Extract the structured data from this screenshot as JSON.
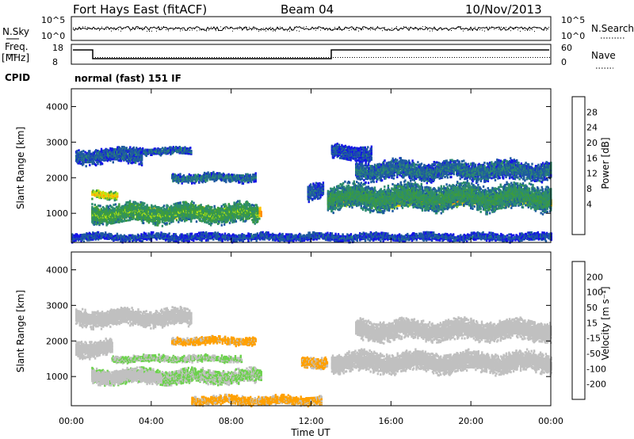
{
  "header": {
    "radar": "Fort Hays East (fitACF)",
    "beam": "Beam 04",
    "date": "10/Nov/2013"
  },
  "panels": {
    "nsky_label": "N.Sky",
    "nsky_ticks": [
      "10^5",
      "10^0"
    ],
    "nsearch_label": "N.Search",
    "nsearch_ticks": [
      "10^5",
      "10^0"
    ],
    "freq_label_1": "Freq.",
    "freq_label_2": "[MHz]",
    "freq_ticks": [
      "18",
      "8"
    ],
    "nave_label": "Nave",
    "nave_ticks": [
      "60",
      "0"
    ],
    "cpid_label": "CPID",
    "cpid_text": "normal (fast) 151 IF"
  },
  "colorbars": {
    "power": {
      "label": "Power [dB]",
      "ticks": [
        "28",
        "24",
        "20",
        "16",
        "12",
        "8",
        "4"
      ],
      "colors": [
        "#e00000",
        "#ff4a00",
        "#ff8c00",
        "#ffc400",
        "#b4e614",
        "#3c9c3c",
        "#2d8c6e",
        "#1e5aa0",
        "#1414e6"
      ]
    },
    "velocity": {
      "label": "Velocity [m s⁻¹]",
      "ticks": [
        "200",
        "100",
        "50",
        "15",
        "-15",
        "-50",
        "-100",
        "-200"
      ],
      "colors": [
        "#1c2fa8",
        "#2060c8",
        "#38a038",
        "#6cd24c",
        "#c0c0c0",
        "#ffa000",
        "#ff7814",
        "#ff3c1e",
        "#e60000"
      ]
    }
  },
  "chart_data": [
    {
      "type": "heatmap",
      "name": "power",
      "ylabel": "Slant Range [km]",
      "yticks": [
        1000,
        2000,
        3000,
        4000
      ],
      "ylim": [
        180,
        4500
      ],
      "xlim": [
        0,
        24
      ],
      "cbar_range": [
        0,
        32
      ],
      "cbar_label": "Power [dB]",
      "blobs": [
        {
          "t0": 1.0,
          "t1": 9.5,
          "r": 1000,
          "w": 170,
          "v": 24
        },
        {
          "t0": 1.0,
          "t1": 9.3,
          "r": 1000,
          "w": 290,
          "v": 13
        },
        {
          "t0": 2.0,
          "t1": 6.0,
          "r": 2750,
          "w": 110,
          "v": 6
        },
        {
          "t0": 0.2,
          "t1": 3.5,
          "r": 2600,
          "w": 220,
          "v": 6
        },
        {
          "t0": 5.0,
          "t1": 9.2,
          "r": 2000,
          "w": 130,
          "v": 7
        },
        {
          "t0": 1.0,
          "t1": 2.3,
          "r": 1500,
          "w": 120,
          "v": 20
        },
        {
          "t0": 13.0,
          "t1": 24.0,
          "r": 1350,
          "w": 170,
          "v": 24
        },
        {
          "t0": 12.8,
          "t1": 24.0,
          "r": 1450,
          "w": 380,
          "v": 11
        },
        {
          "t0": 14.2,
          "t1": 24.0,
          "r": 2200,
          "w": 280,
          "v": 7
        },
        {
          "t0": 13.0,
          "t1": 15.0,
          "r": 2700,
          "w": 220,
          "v": 5
        },
        {
          "t0": 11.8,
          "t1": 12.6,
          "r": 1600,
          "w": 250,
          "v": 6
        },
        {
          "t0": 0.0,
          "t1": 24.0,
          "r": 330,
          "w": 120,
          "v": 5
        }
      ]
    },
    {
      "type": "heatmap",
      "name": "velocity",
      "ylabel": "Slant Range [km]",
      "yticks": [
        1000,
        2000,
        3000,
        4000
      ],
      "ylim": [
        180,
        4500
      ],
      "xlim": [
        0,
        24
      ],
      "xticks": [
        "00:00",
        "04:00",
        "08:00",
        "12:00",
        "16:00",
        "20:00",
        "00:00"
      ],
      "xlabel": "Time UT",
      "cbar_range": [
        -250,
        250
      ],
      "cbar_label": "Velocity [m s⁻¹]",
      "blobs": [
        {
          "t0": 1.0,
          "t1": 9.5,
          "r": 1000,
          "w": 220,
          "v": 30
        },
        {
          "t0": 1.0,
          "t1": 4.5,
          "r": 1000,
          "w": 200,
          "v": 0
        },
        {
          "t0": 0.2,
          "t1": 6.0,
          "r": 2650,
          "w": 260,
          "v": 0
        },
        {
          "t0": 0.2,
          "t1": 2.0,
          "r": 1800,
          "w": 250,
          "v": 0
        },
        {
          "t0": 5.0,
          "t1": 9.2,
          "r": 2000,
          "w": 120,
          "v": -40
        },
        {
          "t0": 2.0,
          "t1": 8.5,
          "r": 1500,
          "w": 100,
          "v": 30
        },
        {
          "t0": 13.0,
          "t1": 24.0,
          "r": 1400,
          "w": 300,
          "v": 0
        },
        {
          "t0": 14.2,
          "t1": 24.0,
          "r": 2300,
          "w": 300,
          "v": 0
        },
        {
          "t0": 11.5,
          "t1": 12.8,
          "r": 1400,
          "w": 180,
          "v": -40
        },
        {
          "t0": 6.0,
          "t1": 12.5,
          "r": 330,
          "w": 130,
          "v": -40
        }
      ]
    }
  ]
}
